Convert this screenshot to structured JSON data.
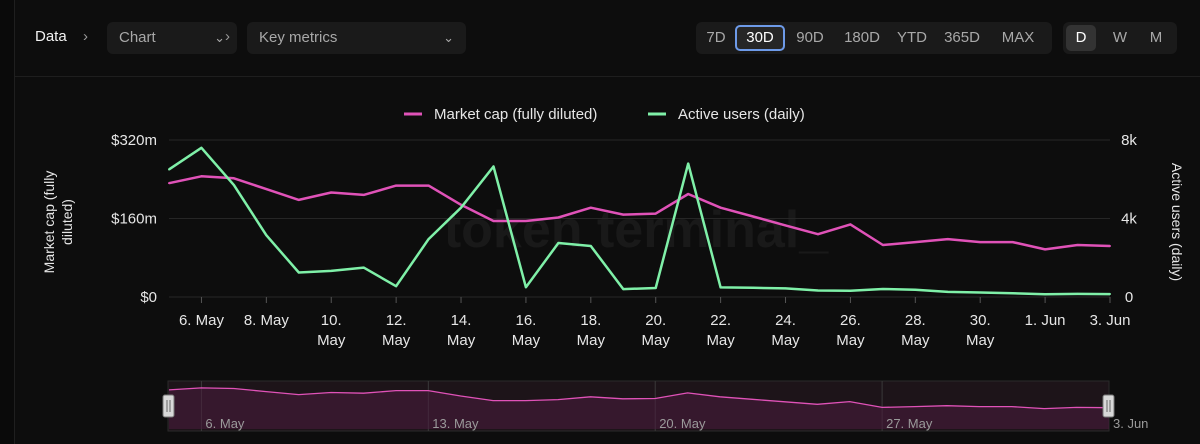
{
  "breadcrumb": {
    "root": "Data",
    "select1": "Chart",
    "select2": "Key metrics"
  },
  "ranges": [
    "7D",
    "30D",
    "90D",
    "180D",
    "YTD",
    "365D",
    "MAX"
  ],
  "active_range": "30D",
  "granularity": [
    "D",
    "W",
    "M"
  ],
  "active_granularity": "D",
  "watermark": "token terminal_",
  "colors": {
    "market_cap": "#e052b8",
    "active_users": "#7ff0a8",
    "focus_ring": "#6d9ae8"
  },
  "icons": [
    "chevron-right-icon",
    "chevron-down-icon",
    "range-handle-icon"
  ],
  "chart_data": {
    "type": "line",
    "legend": [
      "Market cap (fully diluted)",
      "Active users (daily)"
    ],
    "legend_position": "top-center",
    "y_left_label": "Market cap (fully diluted)",
    "y_right_label": "Active users (daily)",
    "y_left_ticks": [
      "$320m",
      "$160m",
      "$0"
    ],
    "y_right_ticks": [
      "8k",
      "4k",
      "0"
    ],
    "y_left_range": [
      0,
      320
    ],
    "y_right_range": [
      0,
      8000
    ],
    "x_ticks": [
      {
        "day": 6,
        "label": [
          "6. May"
        ]
      },
      {
        "day": 8,
        "label": [
          "8. May"
        ]
      },
      {
        "day": 10,
        "label": [
          "10.",
          "May"
        ]
      },
      {
        "day": 12,
        "label": [
          "12.",
          "May"
        ]
      },
      {
        "day": 14,
        "label": [
          "14.",
          "May"
        ]
      },
      {
        "day": 16,
        "label": [
          "16.",
          "May"
        ]
      },
      {
        "day": 18,
        "label": [
          "18.",
          "May"
        ]
      },
      {
        "day": 20,
        "label": [
          "20.",
          "May"
        ]
      },
      {
        "day": 22,
        "label": [
          "22.",
          "May"
        ]
      },
      {
        "day": 24,
        "label": [
          "24.",
          "May"
        ]
      },
      {
        "day": 26,
        "label": [
          "26.",
          "May"
        ]
      },
      {
        "day": 28,
        "label": [
          "28.",
          "May"
        ]
      },
      {
        "day": 30,
        "label": [
          "30.",
          "May"
        ]
      },
      {
        "day": 32,
        "label": [
          "1. Jun"
        ]
      },
      {
        "day": 34,
        "label": [
          "3. Jun"
        ]
      }
    ],
    "days": [
      5,
      6,
      7,
      8,
      9,
      10,
      11,
      12,
      13,
      14,
      15,
      16,
      17,
      18,
      19,
      20,
      21,
      22,
      23,
      24,
      25,
      26,
      27,
      28,
      29,
      30,
      31,
      32,
      33,
      34
    ],
    "series": [
      {
        "name": "Market cap (fully diluted)",
        "axis": "left",
        "values": [
          232,
          246,
          242,
          220,
          198,
          213,
          208,
          227,
          227,
          188,
          155,
          155,
          162,
          182,
          168,
          170,
          210,
          182,
          164,
          146,
          128,
          148,
          106,
          112,
          118,
          112,
          112,
          97,
          106,
          104
        ]
      },
      {
        "name": "Active users (daily)",
        "axis": "right",
        "values": [
          6500,
          7600,
          5700,
          3150,
          1250,
          1330,
          1500,
          550,
          2950,
          4550,
          6650,
          500,
          2750,
          2600,
          400,
          460,
          6800,
          490,
          470,
          440,
          330,
          320,
          410,
          370,
          260,
          230,
          190,
          140,
          160,
          150
        ]
      }
    ],
    "navigator": {
      "labels": [
        "6. May",
        "13. May",
        "20. May",
        "27. May",
        "3. Jun"
      ]
    }
  }
}
